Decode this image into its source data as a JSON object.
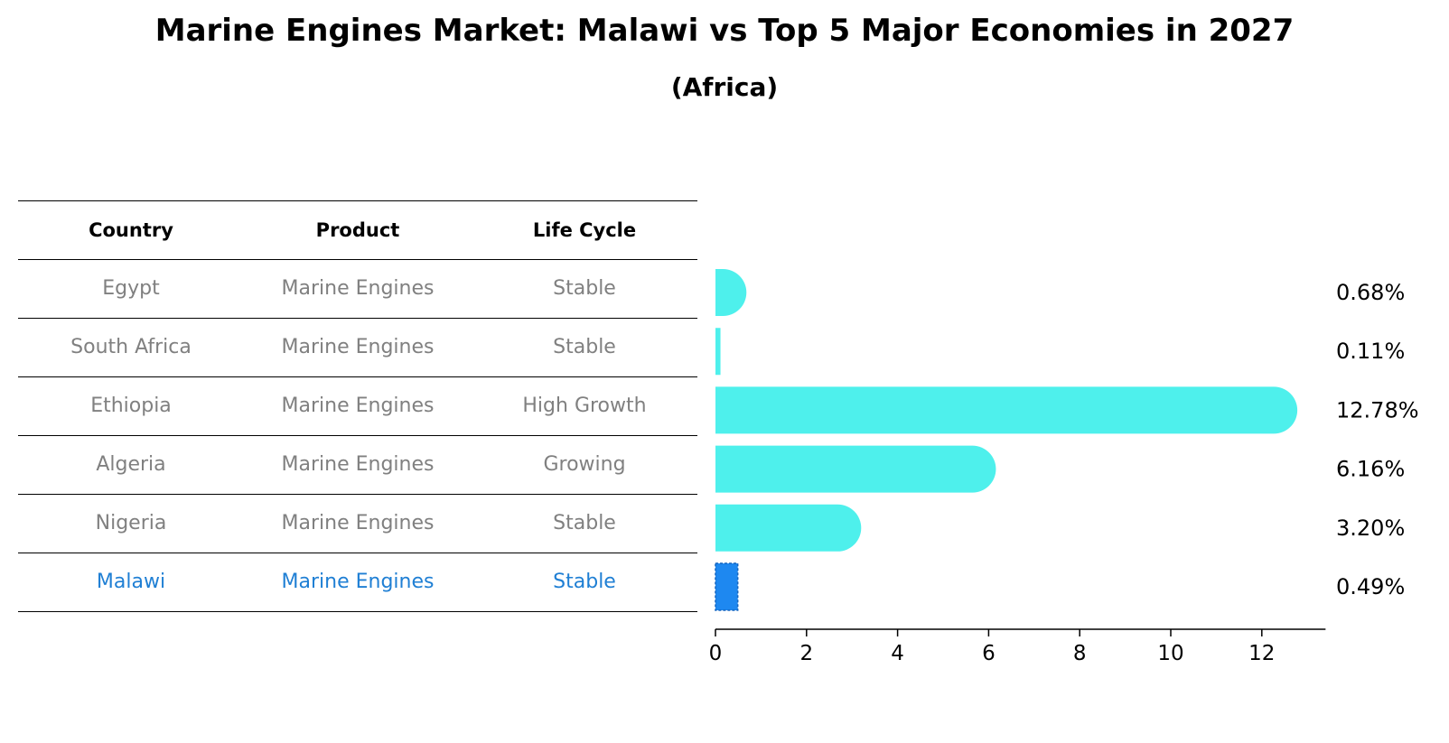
{
  "title": "Marine Engines Market: Malawi vs Top 5 Major Economies in 2027",
  "subtitle": "(Africa)",
  "table": {
    "headers": [
      "Country",
      "Product",
      "Life Cycle"
    ],
    "rows": [
      [
        "Egypt",
        "Marine Engines",
        "Stable"
      ],
      [
        "South Africa",
        "Marine Engines",
        "Stable"
      ],
      [
        "Ethiopia",
        "Marine Engines",
        "High Growth"
      ],
      [
        "Algeria",
        "Marine Engines",
        "Growing"
      ],
      [
        "Nigeria",
        "Marine Engines",
        "Stable"
      ],
      [
        "Malawi",
        "Marine Engines",
        "Stable"
      ]
    ],
    "highlight_row": 5
  },
  "colors": {
    "bar": "#4ef0ec",
    "highlight_bar": "#1e88f0",
    "highlight_text": "#1f7fd4",
    "text_muted": "#808080"
  },
  "chart_data": {
    "type": "bar",
    "orientation": "horizontal",
    "categories": [
      "Egypt",
      "South Africa",
      "Ethiopia",
      "Algeria",
      "Nigeria",
      "Malawi"
    ],
    "values": [
      0.68,
      0.11,
      12.78,
      6.16,
      3.2,
      0.49
    ],
    "value_labels": [
      "0.68%",
      "0.11%",
      "12.78%",
      "6.16%",
      "3.20%",
      "0.49%"
    ],
    "xticks": [
      0,
      2,
      4,
      6,
      8,
      10,
      12
    ],
    "xlim": [
      0,
      13.4
    ],
    "highlight_index": 5,
    "grid": false
  }
}
